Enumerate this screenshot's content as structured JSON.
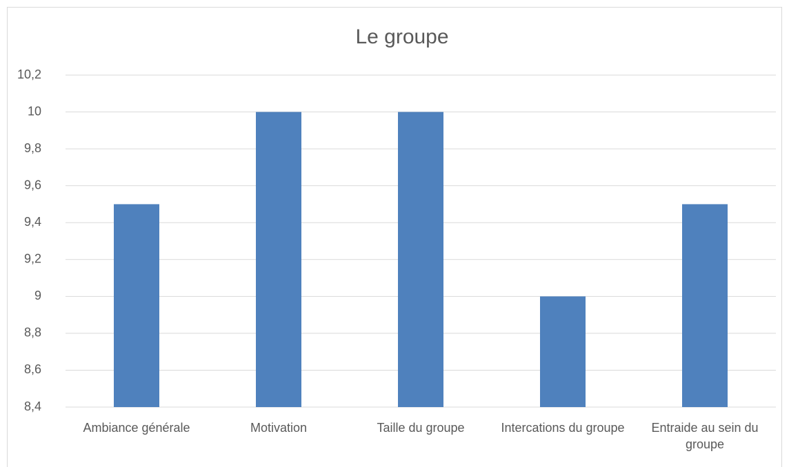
{
  "chart_data": {
    "type": "bar",
    "title": "Le groupe",
    "categories": [
      "Ambiance générale",
      "Motivation",
      "Taille du groupe",
      "Intercations du groupe",
      "Entraide au sein du groupe"
    ],
    "values": [
      9.5,
      10,
      10,
      9,
      9.5
    ],
    "color": "#4f81bd",
    "ylim": [
      8.4,
      10.2
    ],
    "yticks": [
      {
        "value": 8.4,
        "label": "8,4"
      },
      {
        "value": 8.6,
        "label": "8,6"
      },
      {
        "value": 8.8,
        "label": "8,8"
      },
      9,
      {
        "value": 9.2,
        "label": "9,2"
      },
      {
        "value": 9.4,
        "label": "9,4"
      },
      {
        "value": 9.6,
        "label": "9,6"
      },
      {
        "value": 9.8,
        "label": "9,8"
      },
      10,
      {
        "value": 10.2,
        "label": "10,2"
      }
    ],
    "grid": true
  }
}
